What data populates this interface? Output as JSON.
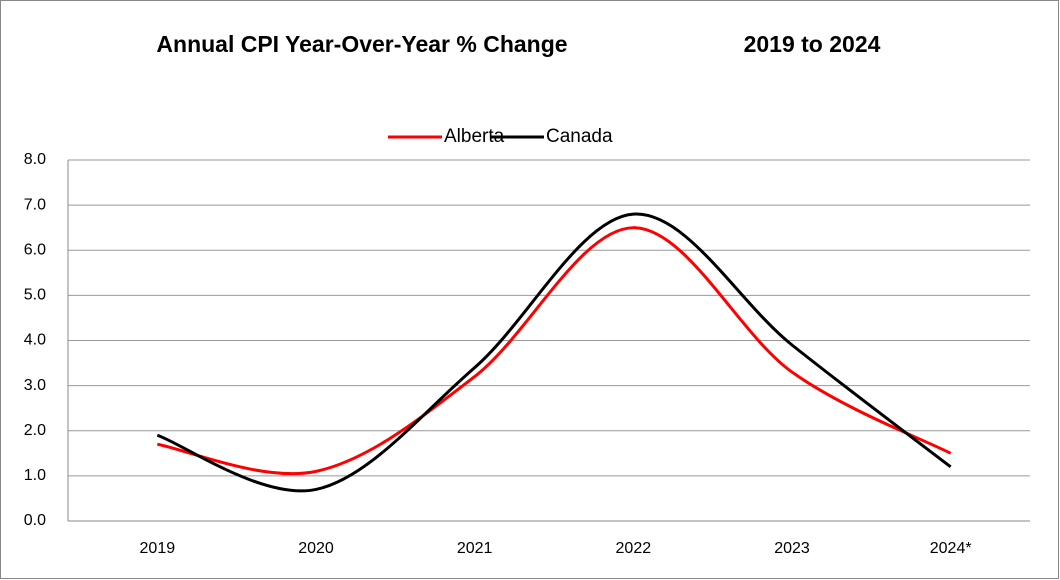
{
  "chart_data": {
    "type": "line",
    "title": "Annual CPI Year-Over-Year % Change",
    "subtitle": "2019 to 2024",
    "categories": [
      "2019",
      "2020",
      "2021",
      "2022",
      "2023",
      "2024*"
    ],
    "series": [
      {
        "name": "Alberta",
        "color": "#ff0000",
        "values": [
          1.7,
          1.1,
          3.2,
          6.5,
          3.3,
          1.5
        ]
      },
      {
        "name": "Canada",
        "color": "#000000",
        "values": [
          1.9,
          0.7,
          3.4,
          6.8,
          3.9,
          1.2
        ]
      }
    ],
    "ylim": [
      0,
      8
    ],
    "yticks": [
      {
        "value": 0,
        "label": "0.0"
      },
      {
        "value": 1,
        "label": "1.0"
      },
      {
        "value": 2,
        "label": "2.0"
      },
      {
        "value": 3,
        "label": "3.0"
      },
      {
        "value": 4,
        "label": "4.0"
      },
      {
        "value": 5,
        "label": "5.0"
      },
      {
        "value": 6,
        "label": "6.0"
      },
      {
        "value": 7,
        "label": "7.0"
      },
      {
        "value": 8,
        "label": "8.0"
      }
    ],
    "grid": true,
    "smooth": true,
    "legend": "top"
  }
}
